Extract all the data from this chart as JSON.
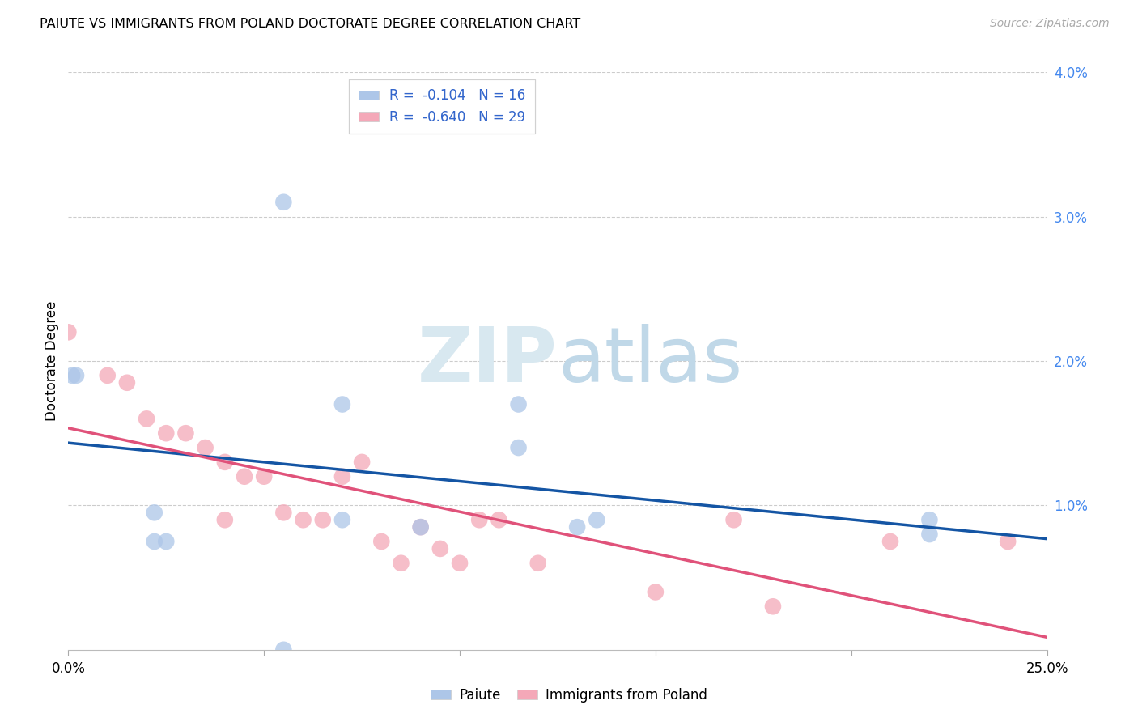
{
  "title": "PAIUTE VS IMMIGRANTS FROM POLAND DOCTORATE DEGREE CORRELATION CHART",
  "source": "Source: ZipAtlas.com",
  "ylabel": "Doctorate Degree",
  "xmin": 0.0,
  "xmax": 0.25,
  "ymin": 0.0,
  "ymax": 0.04,
  "yticks": [
    0.0,
    0.01,
    0.02,
    0.03,
    0.04
  ],
  "ytick_labels": [
    "",
    "1.0%",
    "2.0%",
    "3.0%",
    "4.0%"
  ],
  "watermark": "ZIPatlas",
  "paiute_color": "#adc6e8",
  "poland_color": "#f4a8b8",
  "line_blue": "#1455a4",
  "line_pink": "#e0527a",
  "paiute_x": [
    0.001,
    0.002,
    0.022,
    0.055,
    0.022,
    0.025,
    0.055,
    0.115,
    0.115,
    0.07,
    0.07,
    0.09,
    0.13,
    0.135,
    0.22,
    0.22
  ],
  "paiute_y": [
    0.019,
    0.019,
    0.0095,
    0.0,
    0.0075,
    0.0075,
    0.031,
    0.014,
    0.017,
    0.017,
    0.009,
    0.0085,
    0.0085,
    0.009,
    0.009,
    0.008
  ],
  "poland_x": [
    0.0,
    0.01,
    0.015,
    0.02,
    0.025,
    0.03,
    0.035,
    0.04,
    0.04,
    0.045,
    0.05,
    0.055,
    0.06,
    0.065,
    0.07,
    0.075,
    0.08,
    0.085,
    0.09,
    0.095,
    0.1,
    0.105,
    0.11,
    0.12,
    0.15,
    0.17,
    0.18,
    0.21,
    0.24
  ],
  "poland_y": [
    0.022,
    0.019,
    0.0185,
    0.016,
    0.015,
    0.015,
    0.014,
    0.013,
    0.009,
    0.012,
    0.012,
    0.0095,
    0.009,
    0.009,
    0.012,
    0.013,
    0.0075,
    0.006,
    0.0085,
    0.007,
    0.006,
    0.009,
    0.009,
    0.006,
    0.004,
    0.009,
    0.003,
    0.0075,
    0.0075
  ]
}
